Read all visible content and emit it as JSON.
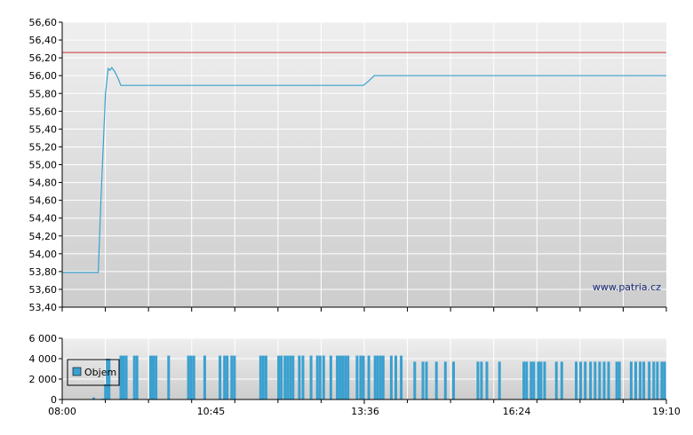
{
  "watermark": "www.patria.cz",
  "colors": {
    "price_line": "#3aa0cf",
    "reference_line": "#cc3333",
    "volume_bar": "#3aa0cf",
    "grid": "#ffffff",
    "axis": "#000000"
  },
  "chart_data": [
    {
      "type": "line",
      "title": "",
      "xlabel": "",
      "ylabel": "",
      "ylim": [
        53.4,
        56.6
      ],
      "y_ticks": [
        "53,40",
        "53,60",
        "53,80",
        "54,00",
        "54,20",
        "54,40",
        "54,60",
        "54,80",
        "55,00",
        "55,20",
        "55,40",
        "55,60",
        "55,80",
        "56,00",
        "56,20",
        "56,40",
        "56,60"
      ],
      "grid": true,
      "reference_line": 56.26,
      "series": [
        {
          "points": [
            [
              "08:00",
              53.79
            ],
            [
              "08:40",
              53.79
            ],
            [
              "08:43",
              54.6
            ],
            [
              "08:48",
              55.8
            ],
            [
              "08:51",
              56.08
            ],
            [
              "08:53",
              56.06
            ],
            [
              "08:55",
              56.09
            ],
            [
              "08:58",
              56.05
            ],
            [
              "09:02",
              55.97
            ],
            [
              "09:05",
              55.89
            ],
            [
              "13:34",
              55.89
            ],
            [
              "13:40",
              55.94
            ],
            [
              "13:46",
              56.0
            ],
            [
              "19:10",
              56.0
            ]
          ]
        }
      ]
    },
    {
      "type": "bar",
      "title": "",
      "xlabel": "",
      "ylabel": "",
      "ylim": [
        0,
        6000
      ],
      "y_ticks": [
        "0",
        "2 000",
        "4 000",
        "6 000"
      ],
      "x_ticks": [
        "08:00",
        "10:45",
        "13:36",
        "16:24",
        "19:10"
      ],
      "x_range": [
        "08:00",
        "19:10"
      ],
      "grid": true,
      "legend": {
        "position": "bottom-left",
        "label": "Objem"
      },
      "series": [
        {
          "values": [
            [
              "08:35",
              200
            ],
            [
              "08:45",
              100
            ],
            [
              "08:48",
              1500
            ],
            [
              "08:50",
              4000
            ],
            [
              "08:52",
              4000
            ],
            [
              "09:05",
              4300
            ],
            [
              "09:08",
              4300
            ],
            [
              "09:11",
              4300
            ],
            [
              "09:20",
              4300
            ],
            [
              "09:23",
              4300
            ],
            [
              "09:38",
              4300
            ],
            [
              "09:41",
              4300
            ],
            [
              "09:44",
              4300
            ],
            [
              "09:58",
              4300
            ],
            [
              "10:20",
              4300
            ],
            [
              "10:23",
              4300
            ],
            [
              "10:26",
              4300
            ],
            [
              "10:38",
              4300
            ],
            [
              "10:55",
              4300
            ],
            [
              "11:00",
              4300
            ],
            [
              "11:03",
              4300
            ],
            [
              "11:08",
              4300
            ],
            [
              "11:11",
              4300
            ],
            [
              "11:40",
              4300
            ],
            [
              "11:43",
              4300
            ],
            [
              "11:46",
              4300
            ],
            [
              "12:00",
              4300
            ],
            [
              "12:03",
              4300
            ],
            [
              "12:07",
              4300
            ],
            [
              "12:10",
              4300
            ],
            [
              "12:13",
              4300
            ],
            [
              "12:16",
              4300
            ],
            [
              "12:23",
              4300
            ],
            [
              "12:27",
              4300
            ],
            [
              "12:36",
              4300
            ],
            [
              "12:43",
              4300
            ],
            [
              "12:46",
              4300
            ],
            [
              "12:50",
              4300
            ],
            [
              "12:58",
              4300
            ],
            [
              "13:05",
              4300
            ],
            [
              "13:08",
              4300
            ],
            [
              "13:11",
              4300
            ],
            [
              "13:14",
              4300
            ],
            [
              "13:17",
              4300
            ],
            [
              "13:27",
              4300
            ],
            [
              "13:31",
              4300
            ],
            [
              "13:34",
              4300
            ],
            [
              "13:40",
              4300
            ],
            [
              "13:47",
              4300
            ],
            [
              "13:50",
              4300
            ],
            [
              "13:53",
              4300
            ],
            [
              "13:56",
              4300
            ],
            [
              "14:05",
              4300
            ],
            [
              "14:10",
              4300
            ],
            [
              "14:16",
              4300
            ],
            [
              "14:31",
              3700
            ],
            [
              "14:40",
              3700
            ],
            [
              "14:44",
              3700
            ],
            [
              "14:55",
              3700
            ],
            [
              "15:05",
              3700
            ],
            [
              "15:14",
              3700
            ],
            [
              "15:41",
              3700
            ],
            [
              "15:45",
              3700
            ],
            [
              "15:51",
              3700
            ],
            [
              "16:05",
              3700
            ],
            [
              "16:32",
              3700
            ],
            [
              "16:35",
              3700
            ],
            [
              "16:40",
              3700
            ],
            [
              "16:43",
              3700
            ],
            [
              "16:48",
              3700
            ],
            [
              "16:51",
              3700
            ],
            [
              "16:55",
              3700
            ],
            [
              "17:08",
              3700
            ],
            [
              "17:14",
              3700
            ],
            [
              "17:30",
              3700
            ],
            [
              "17:35",
              3700
            ],
            [
              "17:40",
              3700
            ],
            [
              "17:46",
              3700
            ],
            [
              "17:51",
              3700
            ],
            [
              "17:56",
              3700
            ],
            [
              "18:01",
              3700
            ],
            [
              "18:06",
              3700
            ],
            [
              "18:15",
              3700
            ],
            [
              "18:18",
              3700
            ],
            [
              "18:31",
              3700
            ],
            [
              "18:36",
              3700
            ],
            [
              "18:41",
              3700
            ],
            [
              "18:45",
              3700
            ],
            [
              "18:51",
              3700
            ],
            [
              "18:56",
              3700
            ],
            [
              "19:00",
              3700
            ],
            [
              "19:05",
              3700
            ],
            [
              "19:08",
              3700
            ]
          ]
        }
      ]
    }
  ]
}
